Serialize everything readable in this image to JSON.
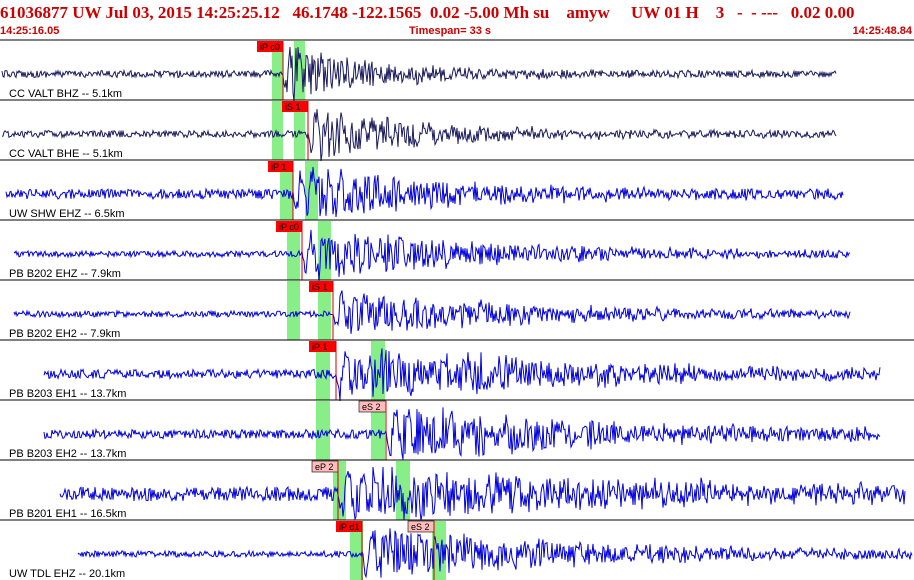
{
  "header": {
    "title": "61036877 UW Jul 03, 2015 14:25:25.12   46.1748 -122.1565  0.02 -5.00 Mh su    amyw     UW 01 H    3   -  - ---   0.02 0.00",
    "start_time": "14:25:16.05",
    "timespan": "Timespan=  33 s",
    "end_time": "14:25:48.84"
  },
  "colors": {
    "header_text": "#cc0000",
    "trace_dark": "#1a1a5e",
    "trace_blue": "#0000dd",
    "pick_window": "#88ee88",
    "pick_primary": "#ff0000",
    "pick_secondary": "#ffbbbb",
    "pick_line": "#cc0000",
    "separator": "#000000"
  },
  "traces": [
    {
      "label": "CC VALT BHZ -- 5.1km",
      "picks": [
        {
          "text": "iP c0",
          "type": "primary"
        }
      ],
      "color": "dark"
    },
    {
      "label": "CC VALT BHE -- 5.1km",
      "picks": [
        {
          "text": "iS 1",
          "type": "primary"
        }
      ],
      "color": "dark"
    },
    {
      "label": "UW SHW EHZ -- 6.5km",
      "picks": [
        {
          "text": "iP 1",
          "type": "primary"
        }
      ],
      "color": "blue"
    },
    {
      "label": "PB B202 EHZ -- 7.9km",
      "picks": [
        {
          "text": "iP c0",
          "type": "primary"
        }
      ],
      "color": "blue"
    },
    {
      "label": "PB B202 EH2 -- 7.9km",
      "picks": [
        {
          "text": "iS 1",
          "type": "primary"
        }
      ],
      "color": "blue"
    },
    {
      "label": "PB B203 EH1 -- 13.7km",
      "picks": [
        {
          "text": "iP 1",
          "type": "primary"
        }
      ],
      "color": "blue"
    },
    {
      "label": "PB B203 EH2 -- 13.7km",
      "picks": [
        {
          "text": "eS 2",
          "type": "secondary"
        }
      ],
      "color": "blue"
    },
    {
      "label": "PB B201 EH1 -- 16.5km",
      "picks": [
        {
          "text": "eP 2",
          "type": "secondary"
        }
      ],
      "color": "blue"
    },
    {
      "label": "UW TDL EHZ -- 20.1km",
      "picks": [
        {
          "text": "iP d1",
          "type": "primary"
        },
        {
          "text": "eS 2",
          "type": "secondary"
        }
      ],
      "color": "blue"
    }
  ]
}
